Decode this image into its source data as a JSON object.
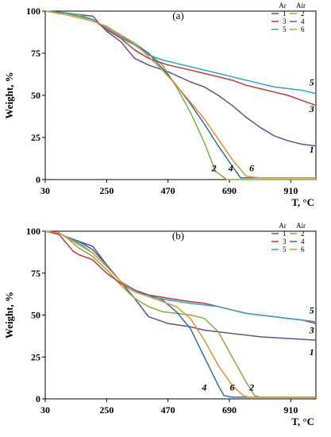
{
  "chart_data": [
    {
      "panel_label": "(a)",
      "type": "line",
      "xlabel": "T, °C",
      "ylabel": "Weight, %",
      "xlim": [
        30,
        1000
      ],
      "ylim": [
        0,
        100
      ],
      "xticks": [
        "30",
        "250",
        "470",
        "690",
        "910"
      ],
      "yticks": [
        "0",
        "25",
        "50",
        "75",
        "100"
      ],
      "grid": false,
      "legend": {
        "placement": "top-right",
        "headers": [
          "Ar",
          "Air"
        ],
        "entries": [
          {
            "name": "1",
            "color": "#6B4C8C"
          },
          {
            "name": "2",
            "color": "#7FAF3F"
          },
          {
            "name": "3",
            "color": "#B83A3A"
          },
          {
            "name": "4",
            "color": "#2E6FA6"
          },
          {
            "name": "5",
            "color": "#2FA5C0"
          },
          {
            "name": "6",
            "color": "#E8902F"
          }
        ]
      },
      "series": [
        {
          "name": "1",
          "color": "#6B4C8C",
          "x": [
            30,
            100,
            150,
            200,
            250,
            300,
            350,
            400,
            470,
            550,
            600,
            650,
            700,
            750,
            800,
            850,
            900,
            950,
            1000
          ],
          "y": [
            100,
            99,
            98,
            97,
            88,
            82,
            72,
            68,
            64,
            58,
            55,
            50,
            44,
            37,
            31,
            26,
            23,
            21,
            20
          ]
        },
        {
          "name": "2",
          "color": "#7FAF3F",
          "x": [
            30,
            100,
            150,
            200,
            250,
            300,
            350,
            400,
            450,
            500,
            550,
            600,
            640,
            680,
            700,
            800,
            900,
            1000
          ],
          "y": [
            100,
            99,
            98,
            95,
            89,
            84,
            80,
            75,
            68,
            55,
            40,
            22,
            5,
            0,
            0,
            0,
            0,
            0
          ]
        },
        {
          "name": "3",
          "color": "#B83A3A",
          "x": [
            30,
            100,
            150,
            200,
            250,
            300,
            350,
            400,
            470,
            550,
            600,
            650,
            700,
            750,
            800,
            850,
            900,
            950,
            1000
          ],
          "y": [
            100,
            99,
            97,
            95,
            89,
            84,
            77,
            72,
            68,
            65,
            63,
            61,
            59,
            56,
            54,
            52,
            50,
            47,
            44
          ]
        },
        {
          "name": "4",
          "color": "#2E6FA6",
          "x": [
            30,
            100,
            150,
            200,
            250,
            300,
            350,
            400,
            450,
            500,
            550,
            600,
            650,
            700,
            730,
            750,
            800,
            900,
            1000
          ],
          "y": [
            100,
            99,
            97,
            95,
            90,
            85,
            81,
            75,
            66,
            56,
            45,
            33,
            20,
            8,
            1,
            1,
            1,
            1,
            1
          ]
        },
        {
          "name": "5",
          "color": "#2FA5C0",
          "x": [
            30,
            100,
            150,
            200,
            250,
            300,
            350,
            400,
            450,
            500,
            550,
            600,
            650,
            700,
            750,
            800,
            850,
            900,
            950,
            1000
          ],
          "y": [
            100,
            99,
            97,
            95,
            90,
            85,
            80,
            74,
            71,
            69,
            67,
            65,
            63,
            61,
            59,
            57,
            55,
            54,
            53,
            51
          ]
        },
        {
          "name": "6",
          "color": "#E8902F",
          "x": [
            30,
            100,
            150,
            200,
            250,
            300,
            350,
            400,
            450,
            500,
            550,
            600,
            650,
            700,
            750,
            800,
            900,
            1000
          ],
          "y": [
            100,
            98,
            96,
            94,
            91,
            86,
            81,
            73,
            65,
            56,
            46,
            36,
            24,
            12,
            2,
            1,
            1,
            1
          ]
        }
      ],
      "curve_labels": [
        {
          "text": "5",
          "x": 985,
          "y": 56
        },
        {
          "text": "3",
          "x": 985,
          "y": 40
        },
        {
          "text": "1",
          "x": 985,
          "y": 16
        },
        {
          "text": "2",
          "x": 635,
          "y": 5
        },
        {
          "text": "4",
          "x": 695,
          "y": 5
        },
        {
          "text": "6",
          "x": 770,
          "y": 5
        }
      ]
    },
    {
      "panel_label": "(b)",
      "type": "line",
      "xlabel": "T, °C",
      "ylabel": "Weight, %",
      "xlim": [
        30,
        1000
      ],
      "ylim": [
        0,
        100
      ],
      "xticks": [
        "30",
        "250",
        "470",
        "690",
        "910"
      ],
      "yticks": [
        "0",
        "25",
        "50",
        "75",
        "100"
      ],
      "grid": false,
      "legend": {
        "placement": "top-right",
        "headers": [
          "Ar",
          "Air"
        ],
        "entries": [
          {
            "name": "1",
            "color": "#6B4C8C"
          },
          {
            "name": "2",
            "color": "#7FAF3F"
          },
          {
            "name": "3",
            "color": "#B83A3A"
          },
          {
            "name": "4",
            "color": "#2E6FA6"
          },
          {
            "name": "5",
            "color": "#2FA5C0"
          },
          {
            "name": "6",
            "color": "#E8902F"
          }
        ]
      },
      "series": [
        {
          "name": "1",
          "color": "#6B4C8C",
          "x": [
            30,
            80,
            100,
            150,
            200,
            250,
            300,
            350,
            400,
            470,
            550,
            600,
            650,
            700,
            750,
            800,
            900,
            1000
          ],
          "y": [
            100,
            99,
            97,
            94,
            91,
            80,
            70,
            60,
            49,
            45,
            43,
            41,
            40,
            39,
            38,
            37,
            36,
            35
          ]
        },
        {
          "name": "2",
          "color": "#7FAF3F",
          "x": [
            30,
            80,
            100,
            150,
            200,
            250,
            300,
            350,
            400,
            450,
            500,
            550,
            600,
            650,
            700,
            750,
            780,
            800,
            900,
            1000
          ],
          "y": [
            100,
            99,
            97,
            90,
            85,
            77,
            68,
            60,
            55,
            52,
            51,
            50,
            48,
            40,
            25,
            10,
            2,
            1,
            1,
            1
          ]
        },
        {
          "name": "3",
          "color": "#B83A3A",
          "x": [
            30,
            80,
            100,
            130,
            150,
            200,
            250,
            300,
            350,
            400,
            470,
            550,
            600,
            650,
            700,
            750,
            800,
            850,
            900,
            950,
            1000
          ],
          "y": [
            100,
            98,
            94,
            88,
            86,
            83,
            75,
            69,
            64,
            62,
            60,
            58,
            57,
            55,
            53,
            51,
            50,
            49,
            48,
            47,
            45
          ]
        },
        {
          "name": "4",
          "color": "#2E6FA6",
          "x": [
            30,
            80,
            100,
            150,
            200,
            250,
            300,
            350,
            400,
            450,
            500,
            550,
            600,
            650,
            670,
            700,
            800,
            900,
            1000
          ],
          "y": [
            100,
            99,
            97,
            94,
            89,
            80,
            70,
            65,
            62,
            59,
            52,
            42,
            25,
            8,
            2,
            1,
            1,
            1,
            1
          ]
        },
        {
          "name": "5",
          "color": "#2FA5C0",
          "x": [
            30,
            80,
            100,
            150,
            200,
            250,
            300,
            350,
            400,
            470,
            550,
            600,
            650,
            700,
            750,
            800,
            850,
            900,
            950,
            1000
          ],
          "y": [
            100,
            99,
            97,
            93,
            87,
            79,
            70,
            64,
            61,
            59,
            57,
            56,
            55,
            53,
            51,
            50,
            49,
            48,
            47,
            46
          ]
        },
        {
          "name": "6",
          "color": "#E8902F",
          "x": [
            30,
            80,
            100,
            150,
            200,
            250,
            300,
            350,
            400,
            450,
            500,
            550,
            600,
            650,
            700,
            740,
            760,
            800,
            900,
            1000
          ],
          "y": [
            100,
            99,
            97,
            92,
            87,
            79,
            70,
            64,
            61,
            58,
            55,
            48,
            35,
            20,
            8,
            2,
            1,
            1,
            1,
            1
          ]
        }
      ],
      "curve_labels": [
        {
          "text": "5",
          "x": 985,
          "y": 51
        },
        {
          "text": "3",
          "x": 985,
          "y": 39
        },
        {
          "text": "1",
          "x": 985,
          "y": 26
        },
        {
          "text": "4",
          "x": 600,
          "y": 5
        },
        {
          "text": "6",
          "x": 700,
          "y": 5
        },
        {
          "text": "2",
          "x": 770,
          "y": 5
        }
      ]
    }
  ]
}
